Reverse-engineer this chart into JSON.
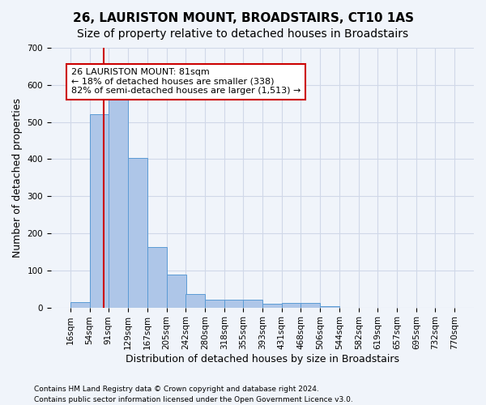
{
  "title": "26, LAURISTON MOUNT, BROADSTAIRS, CT10 1AS",
  "subtitle": "Size of property relative to detached houses in Broadstairs",
  "xlabel": "Distribution of detached houses by size in Broadstairs",
  "ylabel": "Number of detached properties",
  "bin_edges": [
    16,
    54,
    91,
    129,
    167,
    205,
    242,
    280,
    318,
    355,
    393,
    431,
    468,
    506,
    544,
    582,
    619,
    657,
    695,
    732,
    770
  ],
  "bar_heights": [
    14,
    520,
    582,
    403,
    163,
    88,
    36,
    22,
    22,
    22,
    10,
    12,
    12,
    3,
    0,
    0,
    0,
    0,
    0,
    0
  ],
  "bar_color": "#aec6e8",
  "bar_edge_color": "#5b9bd5",
  "property_size": 81,
  "property_line_color": "#cc0000",
  "annotation_text": "26 LAURISTON MOUNT: 81sqm\n← 18% of detached houses are smaller (338)\n82% of semi-detached houses are larger (1,513) →",
  "annotation_box_color": "#ffffff",
  "annotation_box_edge_color": "#cc0000",
  "ylim": [
    0,
    700
  ],
  "yticks": [
    0,
    100,
    200,
    300,
    400,
    500,
    600,
    700
  ],
  "footnote1": "Contains HM Land Registry data © Crown copyright and database right 2024.",
  "footnote2": "Contains public sector information licensed under the Open Government Licence v3.0.",
  "grid_color": "#d0d8e8",
  "background_color": "#f0f4fa",
  "title_fontsize": 11,
  "subtitle_fontsize": 10,
  "label_fontsize": 9,
  "tick_fontsize": 7.5
}
